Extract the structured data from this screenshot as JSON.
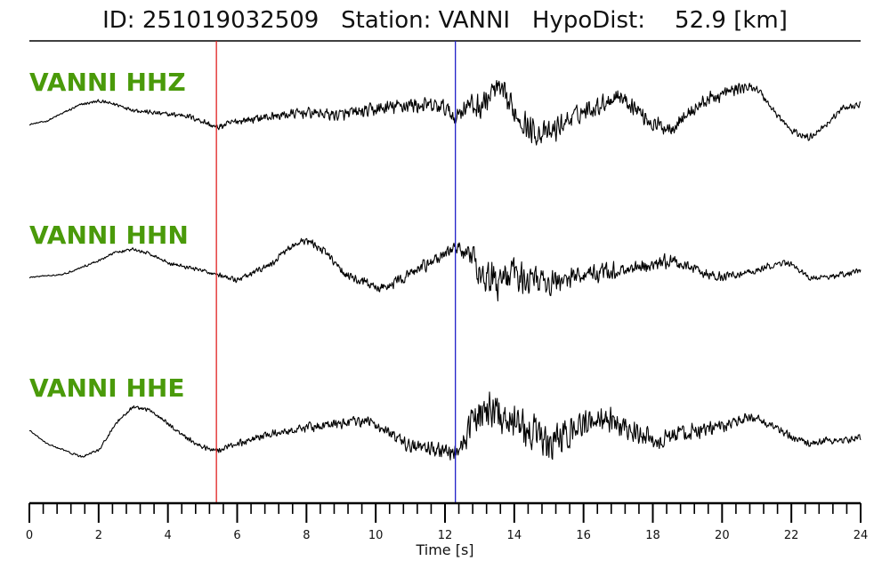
{
  "header": {
    "id_label": "ID:",
    "id_value": "251019032509",
    "station_label": "Station:",
    "station_value": "VANNI",
    "hypodist_label": "HypoDist:",
    "hypodist_value": "52.9",
    "hypodist_unit": "[km]"
  },
  "colors": {
    "label": "#4a9a0a",
    "trace": "#000000",
    "p_pick": "#e02020",
    "s_pick": "#2020c8",
    "axis": "#000000"
  },
  "chart_data": {
    "type": "line",
    "xlabel": "Time [s]",
    "xlim": [
      0,
      24
    ],
    "major_ticks": [
      0,
      2,
      4,
      6,
      8,
      10,
      12,
      14,
      16,
      18,
      20,
      22,
      24
    ],
    "minor_tick_step": 0.4,
    "picks": [
      {
        "phase": "P",
        "time": 5.4
      },
      {
        "phase": "S",
        "time": 12.3
      }
    ],
    "series": [
      {
        "name": "VANNI HHZ",
        "points": [
          [
            0,
            0.0
          ],
          [
            0.5,
            0.05
          ],
          [
            1,
            0.18
          ],
          [
            1.5,
            0.3
          ],
          [
            2,
            0.35
          ],
          [
            2.5,
            0.3
          ],
          [
            3,
            0.22
          ],
          [
            3.5,
            0.18
          ],
          [
            4,
            0.15
          ],
          [
            4.5,
            0.14
          ],
          [
            5,
            0.05
          ],
          [
            5.4,
            -0.05
          ],
          [
            6,
            0.05
          ],
          [
            7,
            0.12
          ],
          [
            8,
            0.18
          ],
          [
            9,
            0.14
          ],
          [
            10,
            0.22
          ],
          [
            11,
            0.3
          ],
          [
            12,
            0.25
          ],
          [
            12.3,
            0.1
          ],
          [
            12.6,
            0.3
          ],
          [
            13,
            0.25
          ],
          [
            13.5,
            0.55
          ],
          [
            14,
            0.2
          ],
          [
            14.5,
            -0.1
          ],
          [
            15,
            -0.15
          ],
          [
            15.5,
            0.05
          ],
          [
            16,
            0.2
          ],
          [
            16.5,
            0.3
          ],
          [
            17,
            0.45
          ],
          [
            17.5,
            0.25
          ],
          [
            18,
            0.0
          ],
          [
            18.5,
            -0.05
          ],
          [
            19,
            0.15
          ],
          [
            19.5,
            0.35
          ],
          [
            20,
            0.45
          ],
          [
            20.5,
            0.55
          ],
          [
            21,
            0.55
          ],
          [
            21.5,
            0.2
          ],
          [
            22,
            -0.1
          ],
          [
            22.5,
            -0.2
          ],
          [
            23,
            0.0
          ],
          [
            23.5,
            0.25
          ],
          [
            24,
            0.3
          ]
        ],
        "noise": [
          [
            0,
            0.01
          ],
          [
            5.4,
            0.06
          ],
          [
            12.3,
            0.16
          ],
          [
            13,
            0.24
          ],
          [
            14.5,
            0.24
          ],
          [
            16,
            0.17
          ],
          [
            20,
            0.12
          ],
          [
            21,
            0.07
          ],
          [
            24,
            0.05
          ]
        ]
      },
      {
        "name": "VANNI HHN",
        "points": [
          [
            0,
            0.0
          ],
          [
            1,
            0.05
          ],
          [
            2,
            0.25
          ],
          [
            2.5,
            0.38
          ],
          [
            3,
            0.42
          ],
          [
            3.5,
            0.35
          ],
          [
            4,
            0.22
          ],
          [
            5,
            0.1
          ],
          [
            5.4,
            0.05
          ],
          [
            6,
            -0.05
          ],
          [
            7,
            0.2
          ],
          [
            7.5,
            0.45
          ],
          [
            8,
            0.55
          ],
          [
            8.5,
            0.4
          ],
          [
            9,
            0.1
          ],
          [
            9.5,
            -0.05
          ],
          [
            10,
            -0.15
          ],
          [
            10.5,
            -0.1
          ],
          [
            11,
            0.05
          ],
          [
            11.5,
            0.2
          ],
          [
            12,
            0.35
          ],
          [
            12.3,
            0.45
          ],
          [
            12.6,
            0.4
          ],
          [
            13,
            0.1
          ],
          [
            13.5,
            -0.1
          ],
          [
            14,
            0.05
          ],
          [
            14.5,
            0.0
          ],
          [
            15,
            -0.1
          ],
          [
            16,
            0.05
          ],
          [
            17,
            0.1
          ],
          [
            18,
            0.2
          ],
          [
            18.5,
            0.25
          ],
          [
            19,
            0.15
          ],
          [
            19.5,
            0.05
          ],
          [
            20,
            0.0
          ],
          [
            21,
            0.1
          ],
          [
            21.5,
            0.2
          ],
          [
            22,
            0.2
          ],
          [
            22.5,
            0.0
          ],
          [
            23,
            0.0
          ],
          [
            23.5,
            0.05
          ],
          [
            24,
            0.1
          ]
        ],
        "noise": [
          [
            0,
            0.01
          ],
          [
            5.4,
            0.04
          ],
          [
            12.3,
            0.12
          ],
          [
            13,
            0.3
          ],
          [
            14.5,
            0.28
          ],
          [
            16,
            0.16
          ],
          [
            18,
            0.14
          ],
          [
            19,
            0.1
          ],
          [
            21,
            0.06
          ],
          [
            24,
            0.05
          ]
        ]
      },
      {
        "name": "VANNI HHE",
        "points": [
          [
            0,
            0.0
          ],
          [
            0.5,
            -0.2
          ],
          [
            1,
            -0.3
          ],
          [
            1.5,
            -0.4
          ],
          [
            2,
            -0.3
          ],
          [
            2.5,
            0.1
          ],
          [
            3,
            0.35
          ],
          [
            3.5,
            0.3
          ],
          [
            4,
            0.1
          ],
          [
            4.5,
            -0.1
          ],
          [
            5,
            -0.25
          ],
          [
            5.4,
            -0.3
          ],
          [
            6,
            -0.2
          ],
          [
            7,
            -0.05
          ],
          [
            8,
            0.05
          ],
          [
            9,
            0.1
          ],
          [
            9.5,
            0.15
          ],
          [
            10,
            0.1
          ],
          [
            10.5,
            -0.1
          ],
          [
            11,
            -0.25
          ],
          [
            12,
            -0.3
          ],
          [
            12.3,
            -0.35
          ],
          [
            12.6,
            -0.1
          ],
          [
            13,
            0.3
          ],
          [
            13.5,
            0.3
          ],
          [
            14,
            0.1
          ],
          [
            14.5,
            0.0
          ],
          [
            15,
            -0.25
          ],
          [
            15.5,
            -0.1
          ],
          [
            16,
            0.1
          ],
          [
            16.5,
            0.2
          ],
          [
            17,
            0.1
          ],
          [
            17.5,
            -0.05
          ],
          [
            18,
            -0.15
          ],
          [
            19,
            -0.05
          ],
          [
            20,
            0.05
          ],
          [
            20.5,
            0.15
          ],
          [
            21,
            0.2
          ],
          [
            21.5,
            0.05
          ],
          [
            22,
            -0.1
          ],
          [
            22.5,
            -0.2
          ],
          [
            23,
            -0.15
          ],
          [
            23.5,
            -0.15
          ],
          [
            24,
            -0.1
          ]
        ],
        "noise": [
          [
            0,
            0.01
          ],
          [
            5.4,
            0.05
          ],
          [
            12.3,
            0.14
          ],
          [
            13,
            0.32
          ],
          [
            15,
            0.32
          ],
          [
            16.5,
            0.22
          ],
          [
            18,
            0.18
          ],
          [
            20,
            0.12
          ],
          [
            21,
            0.08
          ],
          [
            24,
            0.06
          ]
        ]
      }
    ]
  }
}
